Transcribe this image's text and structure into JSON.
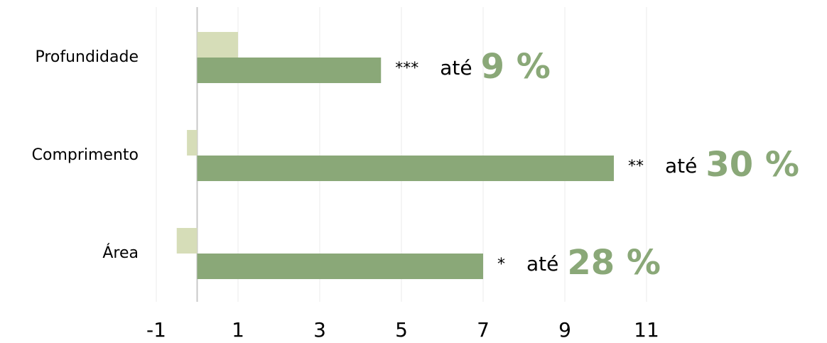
{
  "chart_data": {
    "type": "barh",
    "categories": [
      "Profundidade",
      "Comprimento",
      "Área"
    ],
    "series": [
      {
        "color": "#d6ddb8",
        "values": [
          1.0,
          -0.25,
          -0.5
        ]
      },
      {
        "color": "#8aa878",
        "values": [
          4.5,
          10.2,
          7.0
        ]
      }
    ],
    "annotations": [
      {
        "stars": "***",
        "prefix": "até",
        "highlight": "9 %"
      },
      {
        "stars": "**",
        "prefix": "até",
        "highlight": "30 %"
      },
      {
        "stars": "*",
        "prefix": "até",
        "highlight": "28 %"
      }
    ],
    "highlight_color": "#8aa878",
    "xlim": [
      -1,
      15
    ],
    "xticks": [
      -1,
      1,
      3,
      5,
      7,
      9,
      11
    ],
    "grid": true
  }
}
